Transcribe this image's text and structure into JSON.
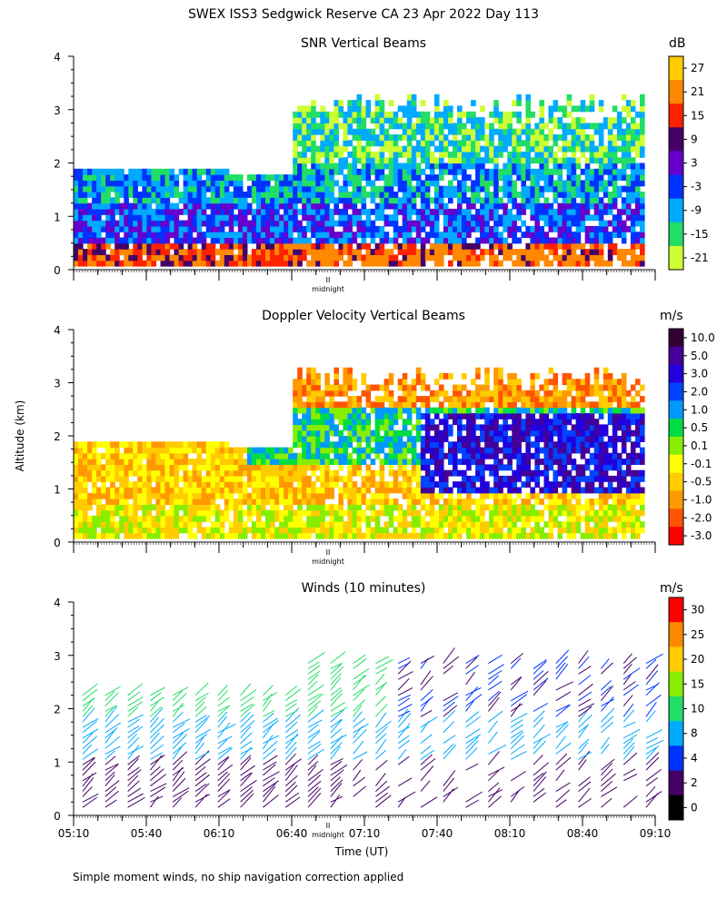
{
  "figure": {
    "title": "SWEX ISS3 Sedgwick Reserve CA  23 Apr 2022 Day 113",
    "ylabel": "Altitude (km)",
    "xlabel": "Time (UT)",
    "footnote": "Simple moment winds, no ship navigation correction applied",
    "midnight_label": "midnight",
    "midnight_marker": "II",
    "x_tick_labels": [
      "05:10",
      "05:40",
      "06:10",
      "06:40",
      "07:10",
      "07:40",
      "08:10",
      "08:40",
      "09:10"
    ],
    "y_tick_labels": [
      "0",
      "1",
      "2",
      "3",
      "4"
    ]
  },
  "chart_data": [
    {
      "type": "heatmap",
      "title": "SNR Vertical Beams",
      "unit": "dB",
      "xlim": [
        "05:10",
        "09:10"
      ],
      "ylim": [
        0,
        4
      ],
      "colorbar_ticks": [
        "27",
        "21",
        "15",
        "9",
        "3",
        "-3",
        "-9",
        "-15",
        "-21"
      ],
      "colorbar_colors": [
        "#ffcc00",
        "#ff8800",
        "#ff2200",
        "#440066",
        "#6600cc",
        "#0033ff",
        "#00aaff",
        "#22dd66",
        "#ccff33"
      ]
    },
    {
      "type": "heatmap",
      "title": "Doppler Velocity Vertical Beams",
      "unit": "m/s",
      "xlim": [
        "05:10",
        "09:10"
      ],
      "ylim": [
        0,
        4
      ],
      "colorbar_ticks": [
        "10.0",
        "5.0",
        "3.0",
        "2.0",
        "1.0",
        "0.5",
        "0.1",
        "-0.1",
        "-0.5",
        "-1.0",
        "-2.0",
        "-3.0"
      ],
      "colorbar_colors": [
        "#330033",
        "#440099",
        "#2200dd",
        "#0044ff",
        "#0099ff",
        "#00dd44",
        "#88ee00",
        "#ffff00",
        "#ffcc00",
        "#ff9900",
        "#ff5500",
        "#ff0000"
      ]
    },
    {
      "type": "scatter",
      "title": "Winds (10 minutes)",
      "unit": "m/s",
      "xlim": [
        "05:10",
        "09:10"
      ],
      "ylim": [
        0,
        4
      ],
      "colorbar_ticks": [
        "30",
        "25",
        "20",
        "15",
        "10",
        "8",
        "4",
        "2",
        "0"
      ],
      "colorbar_colors": [
        "#ff0000",
        "#ff8800",
        "#ffcc00",
        "#88ee00",
        "#22dd66",
        "#00aaff",
        "#0033ff",
        "#440066",
        "#000000"
      ]
    }
  ]
}
